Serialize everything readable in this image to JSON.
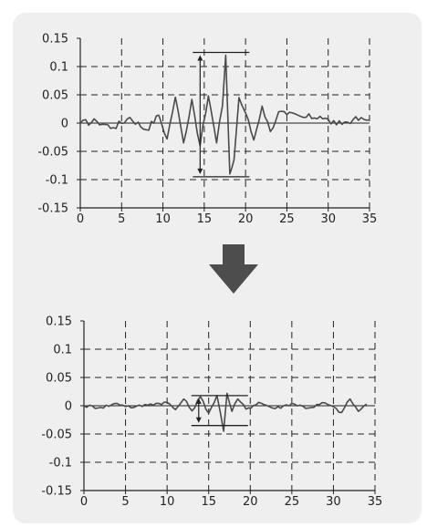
{
  "colors": {
    "panel_background": "#efefef",
    "series": "#4a4a4a",
    "axis": "#222222",
    "grid": "#222222",
    "arrow": "#4d4d4d"
  },
  "transition_icon": "down-arrow-icon",
  "chart_data": [
    {
      "type": "line",
      "xlim": [
        0,
        35
      ],
      "ylim": [
        -0.15,
        0.15
      ],
      "x_ticks": [
        0,
        5,
        10,
        15,
        20,
        25,
        30,
        35
      ],
      "y_ticks": [
        0.15,
        0.1,
        0.05,
        0,
        -0.05,
        -0.1,
        -0.15
      ],
      "x_tick_labels": [
        "0",
        "5",
        "10",
        "15",
        "20",
        "25",
        "30",
        "35"
      ],
      "y_tick_labels": [
        "0.15",
        "0.1",
        "0.05",
        "0",
        "-0.05",
        "-0.1",
        "-0.15"
      ],
      "grid": "dashed",
      "series": [
        {
          "x": [
            0,
            2,
            4,
            6,
            8,
            9.5,
            10.5,
            11.5,
            12.5,
            13.5,
            14.5,
            15.5,
            16.5,
            17.2,
            17.6,
            18.1,
            18.6,
            19.2,
            20,
            21,
            22,
            23,
            24,
            25,
            27,
            29,
            31,
            33,
            35
          ],
          "y": [
            0.0,
            0.003,
            -0.008,
            0.01,
            -0.012,
            0.014,
            -0.028,
            0.046,
            -0.035,
            0.042,
            -0.04,
            0.048,
            -0.035,
            0.03,
            0.12,
            -0.09,
            -0.065,
            0.045,
            0.018,
            -0.03,
            0.03,
            -0.015,
            0.02,
            0.015,
            0.01,
            0.012,
            -0.003,
            0.006,
            0.006
          ]
        }
      ],
      "amplitude_marker": {
        "x": 14.5,
        "y_top": 0.125,
        "y_bottom": -0.095
      }
    },
    {
      "type": "line",
      "xlim": [
        0,
        35
      ],
      "ylim": [
        -0.15,
        0.15
      ],
      "x_ticks": [
        0,
        5,
        10,
        15,
        20,
        25,
        30,
        35
      ],
      "y_ticks": [
        0.15,
        0.1,
        0.05,
        0,
        -0.05,
        -0.1,
        -0.15
      ],
      "x_tick_labels": [
        "0",
        "5",
        "10",
        "15",
        "20",
        "25",
        "30",
        "35"
      ],
      "y_tick_labels": [
        "0.15",
        "0.1",
        "0.05",
        "0",
        "-0.05",
        "-0.1",
        "-0.15"
      ],
      "grid": "dashed",
      "series": [
        {
          "x": [
            0,
            2,
            4,
            6,
            8,
            10,
            11,
            12,
            13,
            14,
            15,
            16,
            16.8,
            17.2,
            17.8,
            18.5,
            19.5,
            21,
            23,
            25,
            27,
            29,
            31,
            32,
            33,
            34
          ],
          "y": [
            0.0,
            -0.003,
            0.004,
            -0.003,
            0.003,
            0.006,
            -0.007,
            0.012,
            -0.009,
            0.016,
            -0.013,
            0.018,
            -0.045,
            0.022,
            -0.01,
            0.012,
            -0.006,
            0.006,
            -0.005,
            0.004,
            -0.004,
            0.005,
            -0.012,
            0.012,
            -0.01,
            0.003
          ]
        }
      ],
      "amplitude_marker": {
        "x": 13.8,
        "y_top": 0.018,
        "y_bottom": -0.035
      }
    }
  ]
}
